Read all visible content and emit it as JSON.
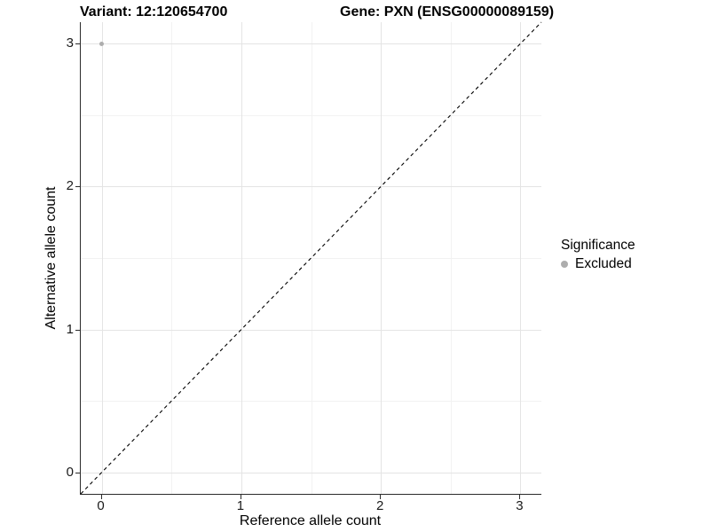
{
  "chart_data": {
    "type": "scatter",
    "title_left": "Variant: 12:120654700",
    "title_right": "Gene: PXN (ENSG00000089159)",
    "xlabel": "Reference allele count",
    "ylabel": "Alternative allele count",
    "x_ticks": [
      0,
      1,
      2,
      3
    ],
    "y_ticks": [
      0,
      1,
      2,
      3
    ],
    "xlim": [
      -0.15,
      3.15
    ],
    "ylim": [
      -0.15,
      3.15
    ],
    "grid": {
      "major": true,
      "minor": true
    },
    "points": [
      {
        "x": 0,
        "y": 3,
        "significance": "Excluded"
      }
    ],
    "identity_line": {
      "type": "dashed",
      "slope": 1,
      "intercept": 0,
      "color": "#000000"
    },
    "legend": {
      "position": "right",
      "title": "Significance",
      "entries": [
        {
          "label": "Excluded",
          "color": "#adadad"
        }
      ]
    },
    "colors": {
      "background": "#ffffff",
      "axis_line": "#2b2b2b",
      "major_grid": "#e4e4e4",
      "minor_grid": "#f2f2f2",
      "point_excluded": "#adadad"
    }
  }
}
